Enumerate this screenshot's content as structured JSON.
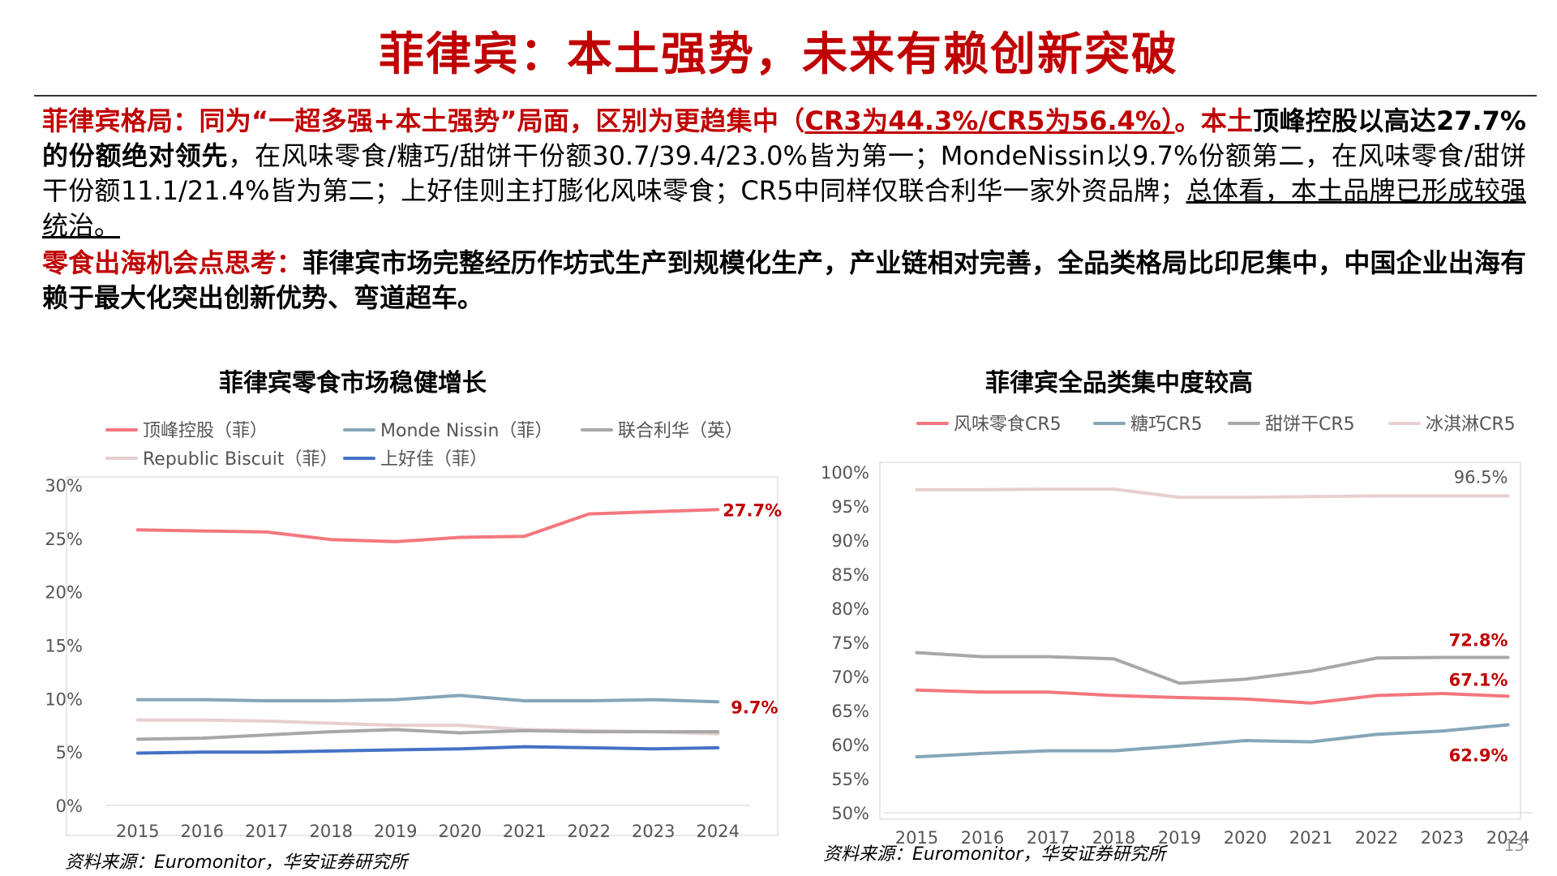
{
  "page": {
    "title": "菲律宾：本土强势，未来有赖创新突破",
    "page_number": "13"
  },
  "paragraph1": {
    "lead": "菲律宾格局：同为“一超多强+本土强势”局面，区别为更趋集中（",
    "cr": "CR3为44.3%/CR5为56.4%）",
    "dot": "。本土",
    "bold_leader": "顶峰控股以高达27.7%的份额绝对领先",
    "body": "，在风味零食/糖巧/甜饼干份额30.7/39.4/23.0%皆为第一；MondeNissin以9.7%份额第二，在风味零食/甜饼干份额11.1/21.4%皆为第二；上好佳则主打膨化风味零食；CR5中同样仅联合利华一家外资品牌；",
    "conclusion": "总体看，本土品牌已形成较强统治。"
  },
  "paragraph2": {
    "lead": "零食出海机会点思考：",
    "body": "菲律宾市场完整经历作坊式生产到规模化生产，产业链相对完善，全品类格局比印尼集中，中国企业出海有赖于最大化突出创新优势、弯道超车。"
  },
  "chart_data": [
    {
      "type": "line",
      "title": "菲律宾零食市场稳健增长",
      "x": [
        "2015",
        "2016",
        "2017",
        "2018",
        "2019",
        "2020",
        "2021",
        "2022",
        "2023",
        "2024"
      ],
      "y_ticks": [
        "0%",
        "5%",
        "10%",
        "15%",
        "20%",
        "25%",
        "30%"
      ],
      "ylim": [
        0,
        30
      ],
      "legend_position": "top",
      "series": [
        {
          "name": "顶峰控股（菲）",
          "color": "#f4777e",
          "values": [
            25.8,
            25.7,
            25.6,
            24.9,
            24.7,
            25.1,
            25.2,
            27.3,
            27.5,
            27.7
          ],
          "end_label": "27.7%"
        },
        {
          "name": "Monde Nissin（菲）",
          "color": "#86a6b8",
          "values": [
            9.9,
            9.9,
            9.8,
            9.8,
            9.9,
            10.3,
            9.8,
            9.8,
            9.9,
            9.7
          ],
          "end_label": "9.7%"
        },
        {
          "name": "联合利华（英）",
          "color": "#a8a8a8",
          "values": [
            6.2,
            6.3,
            6.6,
            6.9,
            7.1,
            6.8,
            7.0,
            6.9,
            6.9,
            6.9
          ],
          "end_label": ""
        },
        {
          "name": "Republic Biscuit（菲）",
          "color": "#e8cfd1",
          "values": [
            8.0,
            8.0,
            7.9,
            7.7,
            7.5,
            7.5,
            7.1,
            7.0,
            6.9,
            6.7
          ],
          "end_label": ""
        },
        {
          "name": "上好佳（菲）",
          "color": "#4472c4",
          "values": [
            4.9,
            5.0,
            5.0,
            5.1,
            5.2,
            5.3,
            5.5,
            5.4,
            5.3,
            5.4
          ],
          "end_label": ""
        }
      ],
      "source": "资料来源：Euromonitor，华安证券研究所"
    },
    {
      "type": "line",
      "title": "菲律宾全品类集中度较高",
      "x": [
        "2015",
        "2016",
        "2017",
        "2018",
        "2019",
        "2020",
        "2021",
        "2022",
        "2023",
        "2024"
      ],
      "y_ticks": [
        "50%",
        "55%",
        "60%",
        "65%",
        "70%",
        "75%",
        "80%",
        "85%",
        "90%",
        "95%",
        "100%"
      ],
      "ylim": [
        50,
        100
      ],
      "legend_position": "top",
      "series": [
        {
          "name": "风味零食CR5",
          "color": "#f4777e",
          "values": [
            68.0,
            67.7,
            67.7,
            67.2,
            66.9,
            66.7,
            66.1,
            67.2,
            67.5,
            67.1
          ],
          "end_label": "67.1%"
        },
        {
          "name": "糖巧CR5",
          "color": "#86a6b8",
          "values": [
            58.2,
            58.7,
            59.1,
            59.1,
            59.8,
            60.6,
            60.4,
            61.5,
            62.0,
            62.9
          ],
          "end_label": "62.9%"
        },
        {
          "name": "甜饼干CR5",
          "color": "#a8a8a8",
          "values": [
            73.5,
            72.9,
            72.9,
            72.6,
            69.0,
            69.6,
            70.8,
            72.7,
            72.8,
            72.8
          ],
          "end_label": "72.8%"
        },
        {
          "name": "冰淇淋CR5",
          "color": "#e8cfd1",
          "values": [
            97.4,
            97.4,
            97.5,
            97.5,
            96.3,
            96.3,
            96.4,
            96.5,
            96.5,
            96.5
          ],
          "end_label": "96.5%"
        }
      ],
      "source": "资料来源：Euromonitor，华安证券研究所"
    }
  ]
}
